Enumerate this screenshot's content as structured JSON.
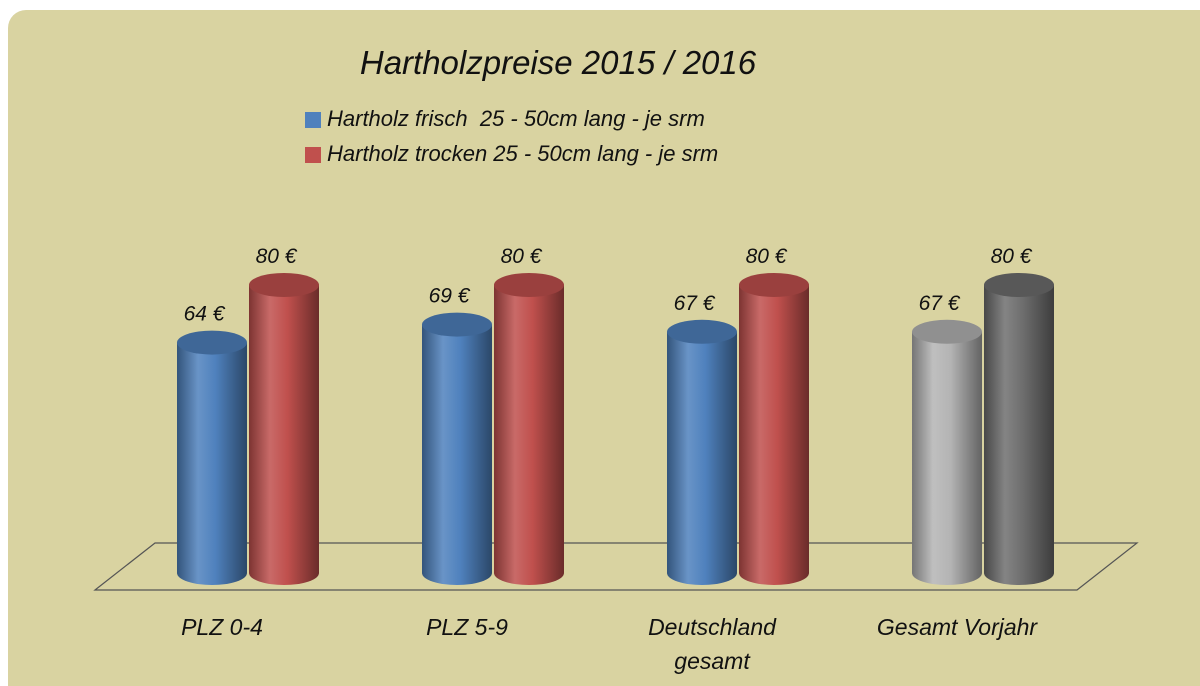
{
  "chart_data": {
    "type": "bar3d-cylinder",
    "title": "Hartholzpreise 2015 / 2016",
    "categories": [
      "PLZ 0-4",
      "PLZ 5-9",
      "Deutschland gesamt",
      "Gesamt Vorjahr"
    ],
    "series": [
      {
        "name": "Hartholz frisch  25 - 50cm lang - je srm",
        "color": "#4f81bd",
        "colors": [
          "#4f81bd",
          "#4f81bd",
          "#4f81bd",
          "#b4b4b4"
        ],
        "values": [
          64,
          69,
          67,
          67
        ],
        "value_labels": [
          "64 €",
          "69 €",
          "67 €",
          "67 €"
        ]
      },
      {
        "name": "Hartholz trocken 25 - 50cm lang - je srm",
        "color": "#c0504d",
        "colors": [
          "#c0504d",
          "#c0504d",
          "#c0504d",
          "#6e6e6e"
        ],
        "values": [
          80,
          80,
          80,
          80
        ],
        "value_labels": [
          "80 €",
          "80 €",
          "80 €",
          "80 €"
        ]
      }
    ],
    "background": "#d9d3a1"
  }
}
